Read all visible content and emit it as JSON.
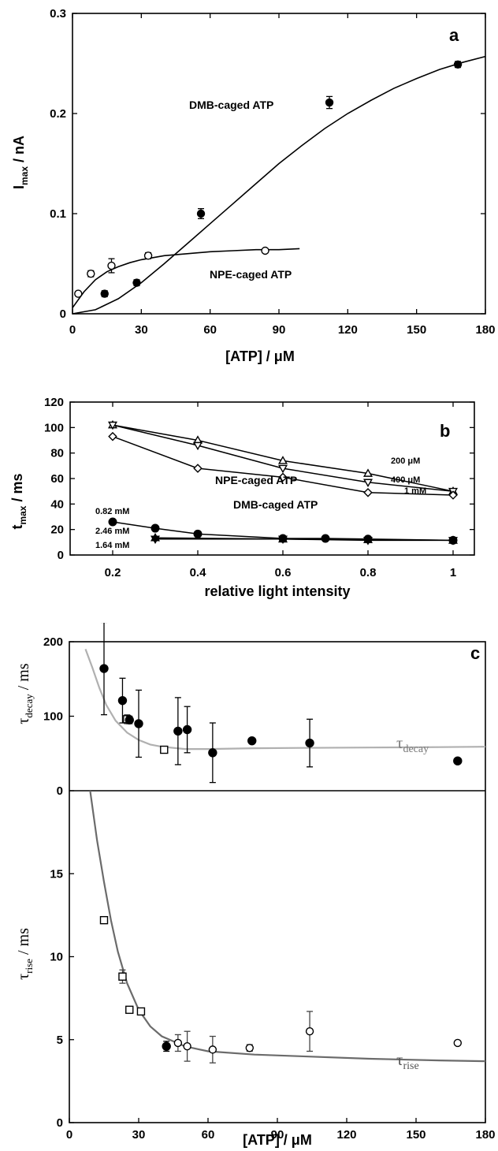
{
  "chart_data": [
    {
      "panel": "a",
      "type": "scatter",
      "letter": "a",
      "xlabel": "[ATP] / μM",
      "ylabel": "I",
      "ylabel_sub": "max",
      "ylabel_unit": " / nA",
      "xlim": [
        0,
        180
      ],
      "ylim": [
        0,
        0.3
      ],
      "xticks": [
        0,
        30,
        60,
        90,
        120,
        150,
        180
      ],
      "xtick_labels": [
        "0",
        "30",
        "60",
        "90",
        "120",
        "150",
        "180"
      ],
      "yticks": [
        0,
        0.1,
        0.2,
        0.3
      ],
      "ytick_labels": [
        "0",
        "0.1",
        "0.2",
        "0.3"
      ],
      "series": [
        {
          "name": "DMB-caged ATP",
          "marker": "filled-circle",
          "x": [
            14,
            28,
            56,
            112,
            168
          ],
          "y": [
            0.02,
            0.031,
            0.1,
            0.211,
            0.249
          ],
          "err": [
            0.003,
            0.003,
            0.005,
            0.006,
            0.003
          ],
          "fit": {
            "x": [
              0,
              10,
              20,
              30,
              40,
              50,
              60,
              70,
              80,
              90,
              100,
              110,
              120,
              130,
              140,
              150,
              160,
              170,
              180
            ],
            "y": [
              0,
              0.004,
              0.015,
              0.031,
              0.05,
              0.07,
              0.09,
              0.11,
              0.13,
              0.15,
              0.168,
              0.185,
              0.2,
              0.213,
              0.225,
              0.235,
              0.244,
              0.251,
              0.257
            ]
          }
        },
        {
          "name": "NPE-caged ATP",
          "marker": "open-circle",
          "x": [
            2.5,
            8,
            17,
            33,
            84
          ],
          "y": [
            0.02,
            0.04,
            0.048,
            0.058,
            0.063
          ],
          "err": [
            0.002,
            0.003,
            0.007,
            0.003,
            0.002
          ],
          "fit": {
            "x": [
              0,
              5,
              10,
              15,
              20,
              25,
              30,
              40,
              50,
              60,
              70,
              80,
              90,
              99
            ],
            "y": [
              0.006,
              0.022,
              0.034,
              0.042,
              0.047,
              0.051,
              0.054,
              0.058,
              0.06,
              0.062,
              0.063,
              0.064,
              0.064,
              0.065
            ]
          }
        }
      ]
    },
    {
      "panel": "b",
      "type": "line",
      "letter": "b",
      "xlabel": "relative light intensity",
      "ylabel": "t",
      "ylabel_sub": "max",
      "ylabel_unit": " / ms",
      "xlim": [
        0.1,
        1.05
      ],
      "ylim": [
        0,
        120
      ],
      "xticks": [
        0.2,
        0.4,
        0.6,
        0.8,
        1
      ],
      "xtick_labels": [
        "0.2",
        "0.4",
        "0.6",
        "0.8",
        "1"
      ],
      "yticks": [
        0,
        20,
        40,
        60,
        80,
        100,
        120
      ],
      "ytick_labels": [
        "0",
        "20",
        "40",
        "60",
        "80",
        "100",
        "120"
      ],
      "group_labels": [
        "NPE-caged ATP",
        "DMB-caged ATP"
      ],
      "series": [
        {
          "name": "200 μM",
          "marker": "triangle-up",
          "x": [
            0.2,
            0.4,
            0.6,
            0.8,
            1
          ],
          "y": [
            102,
            90,
            74,
            64,
            50
          ]
        },
        {
          "name": "400 μM",
          "marker": "triangle-down",
          "x": [
            0.2,
            0.4,
            0.6,
            0.8,
            1
          ],
          "y": [
            102,
            86,
            68,
            57,
            50
          ]
        },
        {
          "name": "1 mM",
          "marker": "diamond",
          "x": [
            0.2,
            0.4,
            0.6,
            0.8,
            1
          ],
          "y": [
            93,
            68,
            61,
            49,
            47
          ]
        },
        {
          "name": "0.82 mM",
          "marker": "filled-circle",
          "x": [
            0.2,
            0.3,
            0.4,
            0.6,
            0.7,
            0.8,
            1
          ],
          "y": [
            26,
            21,
            16.5,
            13,
            13,
            12.5,
            11.5
          ]
        },
        {
          "name": "2.46 mM",
          "marker": "filled-triangle-up",
          "x": [
            0.3,
            0.6,
            0.8,
            1
          ],
          "y": [
            13.5,
            12.5,
            12,
            11.5
          ]
        },
        {
          "name": "1.64 mM",
          "marker": "filled-triangle-down",
          "x": [
            0.3,
            0.6,
            0.8,
            1
          ],
          "y": [
            12.5,
            12.5,
            11.5,
            11.5
          ]
        }
      ]
    },
    {
      "panel": "c",
      "type": "scatter",
      "letter": "c",
      "xlabel": "[ATP] / μM",
      "xlim": [
        0,
        180
      ],
      "xticks": [
        0,
        30,
        60,
        90,
        120,
        150,
        180
      ],
      "xtick_labels": [
        "0",
        "30",
        "60",
        "90",
        "120",
        "150",
        "180"
      ],
      "subplots": [
        {
          "name": "decay",
          "ylabel": "τ",
          "ylabel_sub": "decay",
          "ylabel_unit": " / ms",
          "curve_label": "τ",
          "curve_label_sub": "decay",
          "ylim": [
            0,
            200
          ],
          "yticks": [
            0,
            100,
            200
          ],
          "ytick_labels": [
            "0",
            "100",
            "200"
          ],
          "filled": {
            "x": [
              15,
              23,
              26,
              30,
              47,
              51,
              62,
              79,
              104,
              168
            ],
            "y": [
              164,
              121,
              95,
              90,
              80,
              82,
              51,
              67,
              64,
              40
            ],
            "err": [
              62,
              30,
              5,
              45,
              45,
              31,
              40,
              3,
              32,
              0
            ]
          },
          "open": {
            "x": [
              25,
              41
            ],
            "y": [
              96,
              55
            ],
            "err": [
              6,
              4
            ]
          },
          "fit": {
            "x": [
              7,
              10,
              13,
              16,
              20,
              25,
              30,
              35,
              40,
              50,
              60,
              80,
              100,
              130,
              160,
              180
            ],
            "y": [
              190,
              165,
              138,
              115,
              94,
              78,
              68,
              62,
              59,
              56,
              56,
              57,
              57.5,
              58,
              58.5,
              59
            ]
          }
        },
        {
          "name": "rise",
          "ylabel": "τ",
          "ylabel_sub": "rise",
          "ylabel_unit": " / ms",
          "curve_label": "τ",
          "curve_label_sub": "rise",
          "ylim": [
            0,
            20
          ],
          "yticks": [
            0,
            5,
            10,
            15
          ],
          "ytick_labels": [
            "0",
            "5",
            "10",
            "15"
          ],
          "filled": {
            "x": [
              42
            ],
            "y": [
              4.6
            ],
            "err": [
              0.3
            ]
          },
          "open": {
            "x": [
              15,
              23,
              26,
              31,
              47,
              51,
              62,
              78,
              104,
              168
            ],
            "y": [
              12.2,
              8.8,
              6.8,
              6.7,
              4.8,
              4.6,
              4.4,
              4.5,
              5.5,
              4.8
            ],
            "err": [
              0.2,
              0.4,
              0.2,
              0.2,
              0.5,
              0.9,
              0.8,
              0.2,
              1.2,
              0
            ]
          },
          "fit": {
            "x": [
              9,
              12,
              15,
              18,
              21,
              25,
              30,
              35,
              40,
              50,
              60,
              80,
              100,
              130,
              160,
              180
            ],
            "y": [
              20,
              17,
              14.5,
              12.2,
              10.3,
              8.4,
              6.8,
              5.8,
              5.2,
              4.6,
              4.3,
              4.1,
              4,
              3.85,
              3.75,
              3.7
            ]
          }
        }
      ]
    }
  ]
}
